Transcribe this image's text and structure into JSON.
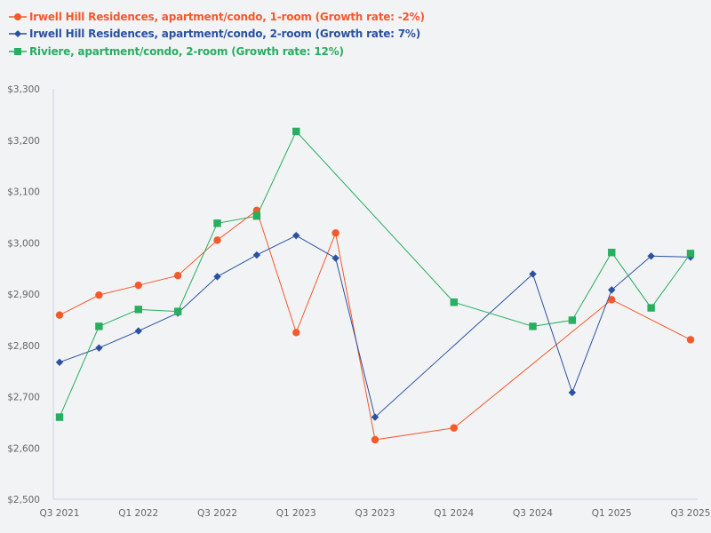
{
  "chart_data": {
    "type": "line",
    "title": "",
    "xlabel": "",
    "ylabel": "",
    "ylim": [
      2500,
      3300
    ],
    "y_ticks": [
      "$2,500",
      "$2,600",
      "$2,700",
      "$2,800",
      "$2,900",
      "$3,000",
      "$3,100",
      "$3,200",
      "$3,300"
    ],
    "x_tick_labels": [
      "Q3 2021",
      "Q1 2022",
      "Q3 2022",
      "Q1 2023",
      "Q3 2023",
      "Q1 2024",
      "Q3 2024",
      "Q1 2025",
      "Q3 2025"
    ],
    "x": [
      "Q3 2021",
      "Q4 2021",
      "Q1 2022",
      "Q2 2022",
      "Q3 2022",
      "Q4 2022",
      "Q1 2023",
      "Q2 2023",
      "Q3 2023",
      "Q4 2023",
      "Q1 2024",
      "Q2 2024",
      "Q3 2024",
      "Q4 2024",
      "Q1 2025",
      "Q2 2025",
      "Q3 2025"
    ],
    "grid": false,
    "legend_position": "top-left",
    "series": [
      {
        "name": "Irwell Hill Residences, apartment/condo, 1-room (Growth rate: -2%)",
        "color": "#f4592b",
        "marker": "circle",
        "values": [
          2859,
          2898,
          2917,
          2936,
          3005,
          3063,
          2825,
          3019,
          2616,
          null,
          2639,
          null,
          null,
          null,
          2889,
          null,
          2811
        ]
      },
      {
        "name": "Irwell Hill Residences, apartment/condo, 2-room (Growth rate: 7%)",
        "color": "#2a52a0",
        "marker": "diamond",
        "values": [
          2767,
          2795,
          2828,
          2863,
          2934,
          2976,
          3014,
          2970,
          2660,
          null,
          null,
          null,
          2939,
          2708,
          2908,
          2974,
          2972
        ]
      },
      {
        "name": "Riviere, apartment/condo, 2-room (Growth rate: 12%)",
        "color": "#27ae60",
        "marker": "square",
        "values": [
          2660,
          2837,
          2870,
          2866,
          3038,
          3052,
          3217,
          null,
          null,
          null,
          2884,
          null,
          2837,
          2849,
          2981,
          2873,
          2979
        ]
      }
    ]
  },
  "legend": [
    {
      "label": "Irwell Hill Residences, apartment/condo, 1-room (Growth rate: -2%)",
      "color": "#f4592b"
    },
    {
      "label": "Irwell Hill Residences, apartment/condo, 2-room (Growth rate: 7%)",
      "color": "#2a52a0"
    },
    {
      "label": "Riviere, apartment/condo, 2-room (Growth rate: 12%)",
      "color": "#27ae60"
    }
  ]
}
